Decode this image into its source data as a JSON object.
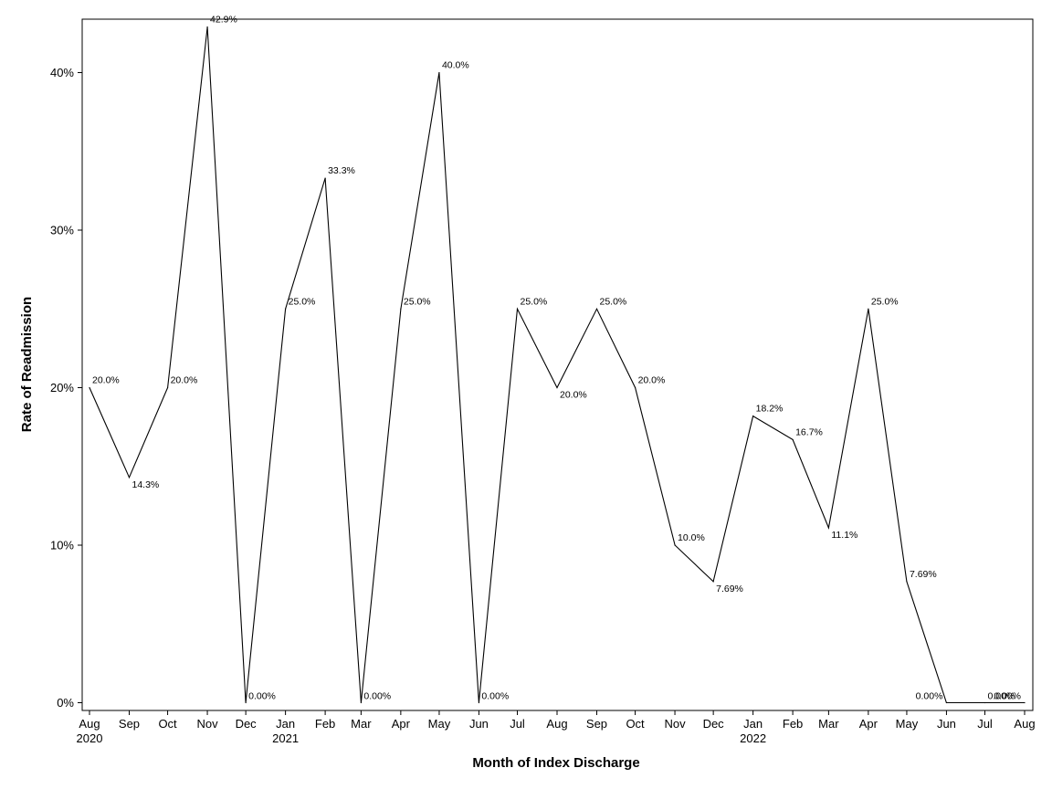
{
  "chart_data": {
    "type": "line",
    "xlabel": "Month of Index Discharge",
    "ylabel": "Rate of Readmission",
    "ylim": [
      0,
      43.5
    ],
    "y_ticks": [
      0,
      10,
      20,
      30,
      40
    ],
    "y_tick_labels": [
      "0%",
      "10%",
      "20%",
      "30%",
      "40%"
    ],
    "grid": false,
    "legend": "none",
    "categories": [
      "Aug",
      "Sep",
      "Oct",
      "Nov",
      "Dec",
      "Jan",
      "Feb",
      "Mar",
      "Apr",
      "May",
      "Jun",
      "Jul",
      "Aug",
      "Sep",
      "Oct",
      "Nov",
      "Dec",
      "Jan",
      "Feb",
      "Mar",
      "Apr",
      "May",
      "Jun",
      "Jul",
      "Aug"
    ],
    "year_labels": [
      "2020",
      "",
      "",
      "",
      "",
      "2021",
      "",
      "",
      "",
      "",
      "",
      "",
      "",
      "",
      "",
      "",
      "",
      "2022",
      "",
      "",
      "",
      "",
      "",
      "",
      ""
    ],
    "x_day_offsets": [
      0,
      31,
      61,
      92,
      122,
      153,
      184,
      212,
      243,
      273,
      304,
      334,
      365,
      396,
      426,
      457,
      487,
      518,
      549,
      577,
      608,
      638,
      669,
      699,
      730
    ],
    "series": [
      {
        "values": [
          20.0,
          14.3,
          20.0,
          42.9,
          0.0,
          25.0,
          33.3,
          0.0,
          25.0,
          40.0,
          0.0,
          25.0,
          20.0,
          25.0,
          20.0,
          10.0,
          7.69,
          18.2,
          16.7,
          11.1,
          25.0,
          7.69,
          0.0,
          0.0,
          0.0
        ],
        "labels": [
          "20.0%",
          "14.3%",
          "20.0%",
          "42.9%",
          "0.00%",
          "25.0%",
          "33.3%",
          "0.00%",
          "25.0%",
          "40.0%",
          "0.00%",
          "25.0%",
          "20.0%",
          "25.0%",
          "20.0%",
          "10.0%",
          "7.69%",
          "18.2%",
          "16.7%",
          "11.1%",
          "25.0%",
          "7.69%",
          "0.00%",
          "0.00%",
          "0.00%"
        ],
        "color": "#000000"
      }
    ]
  }
}
